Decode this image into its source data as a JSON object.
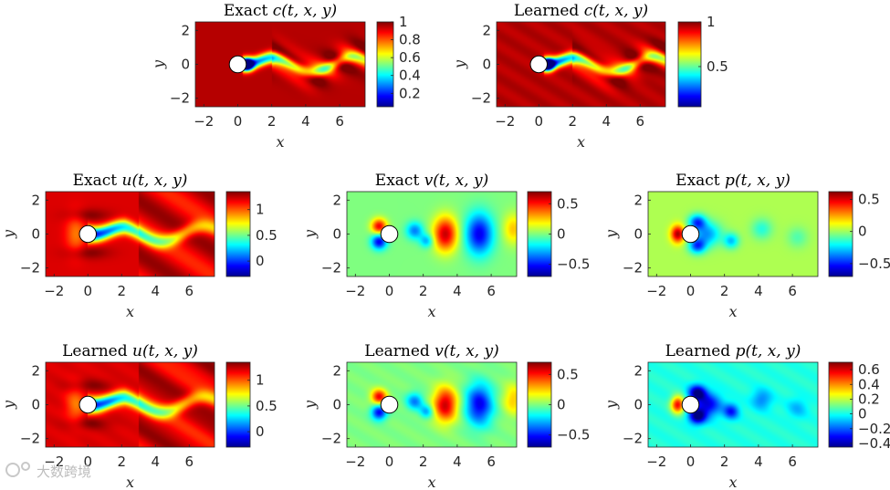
{
  "chart_data": [
    {
      "id": "c_exact",
      "type": "heatmap",
      "title": {
        "pre": "Exact ",
        "fn": "c",
        "args": "(t, x, y)"
      },
      "field": "c",
      "variant": "exact",
      "xlabel": "x",
      "ylabel": "y",
      "xlim": [
        -2.5,
        7.5
      ],
      "ylim": [
        -2.5,
        2.5
      ],
      "xticks": [
        "−2",
        "0",
        "2",
        "4",
        "6"
      ],
      "yticks": [
        "2",
        "0",
        "−2"
      ],
      "clim": [
        0.05,
        1.0
      ],
      "colorbar_ticks": [
        "1",
        "0.8",
        "0.6",
        "0.4",
        "0.2"
      ],
      "colorbar_values": [
        1,
        0.8,
        0.6,
        0.4,
        0.2
      ]
    },
    {
      "id": "c_learned",
      "type": "heatmap",
      "title": {
        "pre": "Learned ",
        "fn": "c",
        "args": "(t, x, y)"
      },
      "field": "c",
      "variant": "learned",
      "xlabel": "x",
      "ylabel": "y",
      "xlim": [
        -2.5,
        7.5
      ],
      "ylim": [
        -2.5,
        2.5
      ],
      "xticks": [
        "−2",
        "0",
        "2",
        "4",
        "6"
      ],
      "yticks": [
        "2",
        "0",
        "−2"
      ],
      "clim": [
        0.05,
        1.0
      ],
      "colorbar_ticks": [
        "1",
        "0.5"
      ],
      "colorbar_values": [
        1,
        0.5
      ]
    },
    {
      "id": "u_exact",
      "type": "heatmap",
      "title": {
        "pre": "Exact ",
        "fn": "u",
        "args": "(t, x, y)"
      },
      "field": "u",
      "variant": "exact",
      "xlabel": "x",
      "ylabel": "y",
      "xlim": [
        -2.5,
        7.5
      ],
      "ylim": [
        -2.5,
        2.5
      ],
      "xticks": [
        "−2",
        "0",
        "2",
        "4",
        "6"
      ],
      "yticks": [
        "2",
        "0",
        "−2"
      ],
      "clim": [
        -0.3,
        1.35
      ],
      "colorbar_ticks": [
        "1",
        "0.5",
        "0"
      ],
      "colorbar_values": [
        1,
        0.5,
        0
      ]
    },
    {
      "id": "v_exact",
      "type": "heatmap",
      "title": {
        "pre": "Exact ",
        "fn": "v",
        "args": "(t, x, y)"
      },
      "field": "v",
      "variant": "exact",
      "xlabel": "x",
      "ylabel": "y",
      "xlim": [
        -2.5,
        7.5
      ],
      "ylim": [
        -2.5,
        2.5
      ],
      "xticks": [
        "−2",
        "0",
        "2",
        "4",
        "6"
      ],
      "yticks": [
        "2",
        "0",
        "−2"
      ],
      "clim": [
        -0.7,
        0.7
      ],
      "colorbar_ticks": [
        "0.5",
        "0",
        "−0.5"
      ],
      "colorbar_values": [
        0.5,
        0,
        -0.5
      ]
    },
    {
      "id": "p_exact",
      "type": "heatmap",
      "title": {
        "pre": "Exact ",
        "fn": "p",
        "args": "(t, x, y)"
      },
      "field": "p",
      "variant": "exact",
      "xlabel": "x",
      "ylabel": "y",
      "xlim": [
        -2.5,
        7.5
      ],
      "ylim": [
        -2.5,
        2.5
      ],
      "xticks": [
        "−2",
        "0",
        "2",
        "4",
        "6"
      ],
      "yticks": [
        "2",
        "0",
        "−2"
      ],
      "clim": [
        -0.7,
        0.62
      ],
      "colorbar_ticks": [
        "0.5",
        "0",
        "−0.5"
      ],
      "colorbar_values": [
        0.5,
        0,
        -0.5
      ]
    },
    {
      "id": "u_learned",
      "type": "heatmap",
      "title": {
        "pre": "Learned ",
        "fn": "u",
        "args": "(t, x, y)"
      },
      "field": "u",
      "variant": "learned",
      "xlabel": "x",
      "ylabel": "y",
      "xlim": [
        -2.5,
        7.5
      ],
      "ylim": [
        -2.5,
        2.5
      ],
      "xticks": [
        "−2",
        "0",
        "2",
        "4",
        "6"
      ],
      "yticks": [
        "2",
        "0",
        "−2"
      ],
      "clim": [
        -0.3,
        1.35
      ],
      "colorbar_ticks": [
        "1",
        "0.5",
        "0"
      ],
      "colorbar_values": [
        1,
        0.5,
        0
      ]
    },
    {
      "id": "v_learned",
      "type": "heatmap",
      "title": {
        "pre": "Learned ",
        "fn": "v",
        "args": "(t, x, y)"
      },
      "field": "v",
      "variant": "learned",
      "xlabel": "x",
      "ylabel": "y",
      "xlim": [
        -2.5,
        7.5
      ],
      "ylim": [
        -2.5,
        2.5
      ],
      "xticks": [
        "−2",
        "0",
        "2",
        "4",
        "6"
      ],
      "yticks": [
        "2",
        "0",
        "−2"
      ],
      "clim": [
        -0.7,
        0.7
      ],
      "colorbar_ticks": [
        "0.5",
        "0",
        "−0.5"
      ],
      "colorbar_values": [
        0.5,
        0,
        -0.5
      ]
    },
    {
      "id": "p_learned",
      "type": "heatmap",
      "title": {
        "pre": "Learned ",
        "fn": "p",
        "args": "(t, x, y)"
      },
      "field": "p",
      "variant": "learned",
      "xlabel": "x",
      "ylabel": "y",
      "xlim": [
        -2.5,
        7.5
      ],
      "ylim": [
        -2.5,
        2.5
      ],
      "xticks": [
        "−2",
        "0",
        "2",
        "4",
        "6"
      ],
      "yticks": [
        "2",
        "0",
        "−2"
      ],
      "clim": [
        -0.45,
        0.7
      ],
      "colorbar_ticks": [
        "0.6",
        "0.4",
        "0.2",
        "0",
        "−0.2",
        "−0.4"
      ],
      "colorbar_values": [
        0.6,
        0.4,
        0.2,
        0,
        -0.2,
        -0.4
      ]
    }
  ],
  "cylinder": {
    "x": 0,
    "y": 0,
    "r": 0.5
  },
  "colormap": "jet",
  "watermark": "大数跨境"
}
